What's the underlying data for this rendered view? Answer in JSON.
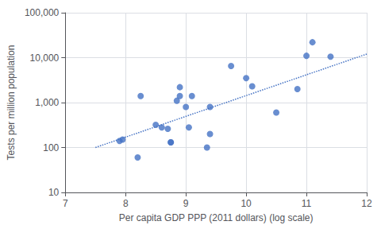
{
  "chart_data": {
    "type": "scatter",
    "xlabel": "Per capita GDP PPP (2011 dollars) (log scale)",
    "ylabel": "Tests per million population",
    "log": "y",
    "grid": true,
    "xlim": [
      7,
      12
    ],
    "xticks": [
      7,
      8,
      9,
      10,
      11,
      12
    ],
    "ylim": [
      10,
      100000
    ],
    "yticks": [
      10,
      100,
      {
        "value": 1000,
        "label": "1,000"
      },
      {
        "value": 10000,
        "label": "10,000"
      },
      {
        "value": 100000,
        "label": "100,000"
      }
    ],
    "series": [
      {
        "type": "scatter",
        "marker": "circle",
        "color": "#4472C4",
        "x": [
          7.9,
          7.95,
          8.2,
          8.25,
          8.5,
          8.6,
          8.7,
          8.75,
          8.75,
          8.85,
          8.9,
          8.9,
          9.0,
          9.05,
          9.1,
          9.35,
          9.4,
          9.4,
          9.75,
          10.0,
          10.1,
          10.5,
          10.85,
          11.0,
          11.1,
          11.4
        ],
        "values": [
          140,
          150,
          60,
          1400,
          320,
          280,
          260,
          130,
          130,
          1100,
          2200,
          1400,
          800,
          280,
          1400,
          100,
          200,
          800,
          6500,
          3500,
          2300,
          600,
          2000,
          11000,
          22000,
          10500
        ]
      },
      {
        "type": "line",
        "line_style": "dotted",
        "color": "#4472C4",
        "x": [
          7.5,
          12.0
        ],
        "values": [
          100,
          12022.644346174131
        ]
      }
    ]
  }
}
